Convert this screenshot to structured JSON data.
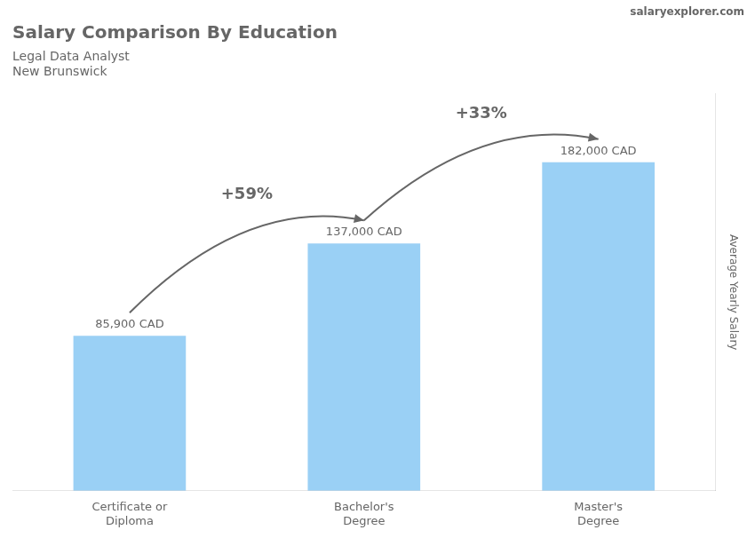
{
  "chart_data": {
    "type": "bar",
    "title": "Salary Comparison By Education",
    "subtitle": [
      "Legal Data Analyst",
      "New Brunswick"
    ],
    "ylabel": "Average Yearly Salary",
    "categories": [
      "Certificate or\nDiploma",
      "Bachelor's\nDegree",
      "Master's\nDegree"
    ],
    "values": [
      85900,
      137000,
      182000
    ],
    "value_labels": [
      "85,900 CAD",
      "137,000 CAD",
      "182,000 CAD"
    ],
    "data_labels": true,
    "ylim": [
      0,
      220000
    ],
    "tick_labels": "x",
    "grid": false,
    "annotations": [
      {
        "text": "+59%",
        "from": "Certificate or\nDiploma",
        "to": "Bachelor's\nDegree"
      },
      {
        "text": "+33%",
        "from": "Bachelor's\nDegree",
        "to": "Master's\nDegree"
      },
      {
        "text": "salaryexplorer.com"
      }
    ]
  }
}
